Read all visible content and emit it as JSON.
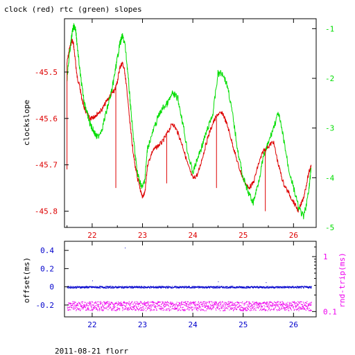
{
  "title": "clock (red) rtc (green) slopes",
  "footer": "2011-08-21 florr",
  "colors": {
    "clock": "#dd0000",
    "rtc": "#00dd00",
    "offset": "#0000cc",
    "rndtrip": "#ee00ee",
    "axis": "#000000"
  },
  "chart_data": [
    {
      "type": "line",
      "title": "clock (red) rtc (green) slopes",
      "xlabel": "",
      "ylabel": "clockslope",
      "y2label": "",
      "xlim": [
        21.45,
        26.45
      ],
      "ylim": [
        -45.835,
        -45.385
      ],
      "y2lim": [
        -5,
        -0.8
      ],
      "x_ticks": [
        22,
        23,
        24,
        25,
        26
      ],
      "y_ticks": [
        -45.5,
        -45.6,
        -45.7,
        -45.8
      ],
      "y2_ticks": [
        -1,
        -2,
        -3,
        -4,
        -5
      ],
      "series": [
        {
          "name": "clock",
          "axis": "left",
          "x": [
            21.5,
            21.55,
            21.6,
            21.63,
            21.67,
            21.7,
            21.75,
            21.8,
            21.85,
            21.9,
            21.95,
            22.0,
            22.05,
            22.1,
            22.2,
            22.3,
            22.4,
            22.45,
            22.5,
            22.55,
            22.6,
            22.65,
            22.7,
            22.75,
            22.8,
            22.85,
            22.9,
            22.95,
            23.0,
            23.05,
            23.1,
            23.2,
            23.3,
            23.4,
            23.5,
            23.6,
            23.7,
            23.8,
            23.9,
            24.0,
            24.1,
            24.2,
            24.3,
            24.4,
            24.5,
            24.6,
            24.7,
            24.8,
            24.9,
            25.0,
            25.1,
            25.2,
            25.3,
            25.4,
            25.5,
            25.6,
            25.7,
            25.8,
            25.9,
            26.0,
            26.1,
            26.2,
            26.3,
            26.35
          ],
          "y": [
            -45.48,
            -45.45,
            -45.43,
            -45.44,
            -45.48,
            -45.51,
            -45.53,
            -45.56,
            -45.58,
            -45.59,
            -45.6,
            -45.6,
            -45.595,
            -45.59,
            -45.58,
            -45.56,
            -45.545,
            -45.54,
            -45.52,
            -45.49,
            -45.48,
            -45.5,
            -45.55,
            -45.61,
            -45.66,
            -45.7,
            -45.73,
            -45.75,
            -45.77,
            -45.76,
            -45.7,
            -45.67,
            -45.66,
            -45.65,
            -45.63,
            -45.61,
            -45.63,
            -45.66,
            -45.7,
            -45.73,
            -45.72,
            -45.68,
            -45.64,
            -45.61,
            -45.59,
            -45.59,
            -45.62,
            -45.66,
            -45.7,
            -45.73,
            -45.75,
            -45.74,
            -45.7,
            -45.67,
            -45.66,
            -45.65,
            -45.7,
            -45.74,
            -45.76,
            -45.78,
            -45.8,
            -45.77,
            -45.72,
            -45.7
          ]
        },
        {
          "name": "rtc",
          "axis": "right",
          "x": [
            21.5,
            21.55,
            21.6,
            21.63,
            21.67,
            21.7,
            21.75,
            21.8,
            21.85,
            21.9,
            21.95,
            22.0,
            22.05,
            22.1,
            22.2,
            22.3,
            22.4,
            22.45,
            22.5,
            22.55,
            22.6,
            22.65,
            22.7,
            22.75,
            22.8,
            22.85,
            22.9,
            22.95,
            23.0,
            23.05,
            23.1,
            23.2,
            23.3,
            23.4,
            23.5,
            23.6,
            23.7,
            23.8,
            23.9,
            24.0,
            24.1,
            24.2,
            24.3,
            24.4,
            24.5,
            24.6,
            24.7,
            24.8,
            24.9,
            25.0,
            25.1,
            25.2,
            25.3,
            25.4,
            25.5,
            25.6,
            25.7,
            25.8,
            25.9,
            26.0,
            26.1,
            26.2,
            26.3,
            26.35
          ],
          "y": [
            -2.0,
            -1.5,
            -1.1,
            -0.95,
            -1.0,
            -1.3,
            -1.8,
            -2.2,
            -2.5,
            -2.7,
            -2.9,
            -3.0,
            -3.1,
            -3.2,
            -3.0,
            -2.6,
            -2.2,
            -1.9,
            -1.6,
            -1.3,
            -1.15,
            -1.3,
            -1.8,
            -2.4,
            -3.0,
            -3.5,
            -3.9,
            -4.1,
            -4.2,
            -4.0,
            -3.4,
            -3.1,
            -2.8,
            -2.6,
            -2.5,
            -2.3,
            -2.4,
            -2.9,
            -3.5,
            -3.9,
            -3.6,
            -3.3,
            -3.0,
            -2.7,
            -1.9,
            -1.9,
            -2.2,
            -2.8,
            -3.5,
            -4.0,
            -4.3,
            -4.5,
            -4.1,
            -3.6,
            -3.3,
            -3.0,
            -2.7,
            -3.2,
            -3.8,
            -4.2,
            -4.6,
            -4.8,
            -4.3,
            -3.8
          ]
        }
      ],
      "spikes": [
        {
          "x": 21.5,
          "y": -45.71
        },
        {
          "x": 22.47,
          "y": -45.75
        },
        {
          "x": 23.48,
          "y": -45.74
        },
        {
          "x": 24.47,
          "y": -45.75
        },
        {
          "x": 25.44,
          "y": -45.8
        }
      ]
    },
    {
      "type": "scatter",
      "title": "",
      "xlabel": "",
      "ylabel": "offset(ms)",
      "y2label": "rnd-trip(ms)",
      "xlim": [
        21.45,
        26.45
      ],
      "ylim": [
        -0.33,
        0.5
      ],
      "y2lim": [
        0.08,
        1.9
      ],
      "y2_scale": "log",
      "x_ticks": [
        22,
        23,
        24,
        25,
        26
      ],
      "y_ticks": [
        0.4,
        0.2,
        0,
        -0.2
      ],
      "y2_ticks": [
        1,
        0.1
      ],
      "series": [
        {
          "name": "offset",
          "axis": "left",
          "x_range": [
            21.5,
            26.35
          ],
          "y_center": 0.0,
          "y_spread": 0.01
        },
        {
          "name": "rnd-trip",
          "axis": "right",
          "x_range": [
            21.5,
            26.35
          ],
          "y_center": 0.13,
          "y_spread": 0.025
        }
      ],
      "outliers": [
        {
          "x": 22.65,
          "y": 0.43
        },
        {
          "x": 22.0,
          "y": 0.07
        },
        {
          "x": 24.5,
          "y": 0.06
        },
        {
          "x": 25.45,
          "y": 0.05
        }
      ]
    }
  ]
}
